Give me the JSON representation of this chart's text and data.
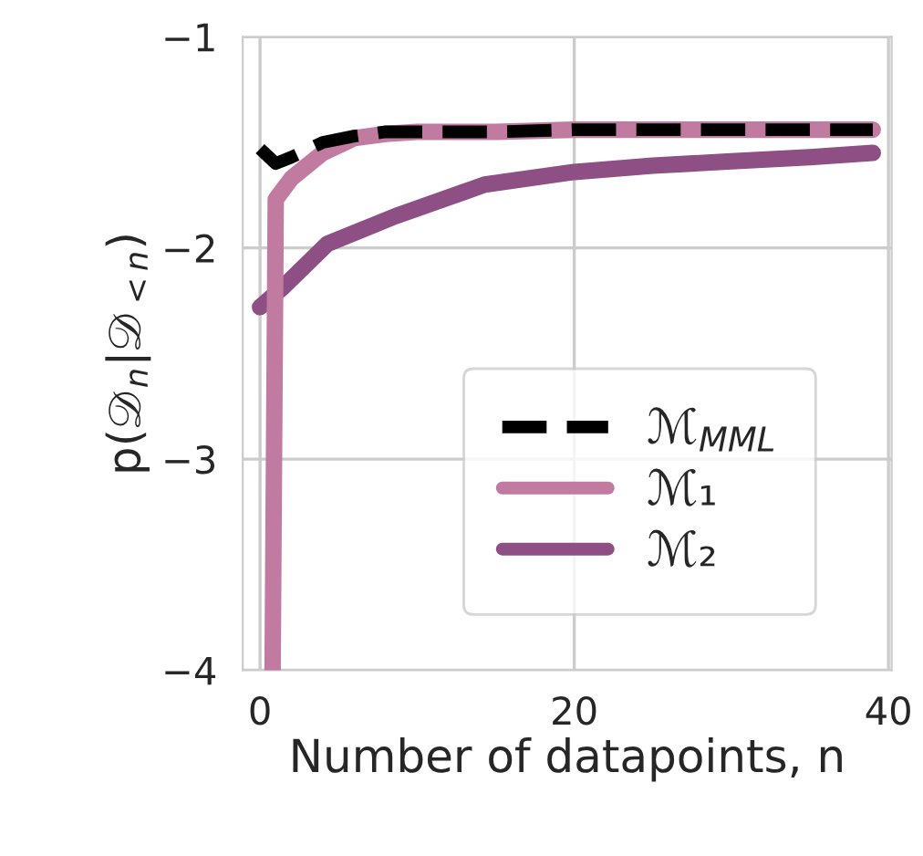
{
  "chart_data": {
    "type": "line",
    "xlabel": "Number of datapoints, n",
    "ylabel": "p(𝒟$_{n}$|𝒟$_{<n}$)",
    "xlim": [
      -1.1,
      40.2
    ],
    "ylim": [
      -4,
      -1
    ],
    "xticks": [
      0,
      20,
      40
    ],
    "yticks": [
      -4,
      -3,
      -2,
      -1
    ],
    "grid": true,
    "legend": "bottom right",
    "series": [
      {
        "name": "ℳ$_{MML}$",
        "color": "#000000",
        "line_style": "dashed",
        "x": [
          0,
          1,
          2,
          4,
          6,
          8,
          10,
          15,
          20,
          25,
          30,
          35,
          39
        ],
        "values": [
          -1.53,
          -1.6,
          -1.57,
          -1.5,
          -1.47,
          -1.45,
          -1.45,
          -1.45,
          -1.44,
          -1.44,
          -1.44,
          -1.44,
          -1.44
        ]
      },
      {
        "name": "ℳ₁",
        "color": "#c27ba0",
        "line_style": "solid",
        "x": [
          0.8,
          1,
          2,
          4,
          6,
          8,
          10,
          15,
          20,
          25,
          30,
          35,
          39
        ],
        "values": [
          -4,
          -1.77,
          -1.67,
          -1.55,
          -1.48,
          -1.46,
          -1.45,
          -1.45,
          -1.44,
          -1.44,
          -1.44,
          -1.44,
          -1.44
        ]
      },
      {
        "name": "ℳ₂",
        "color": "#8e4f85",
        "line_style": "solid",
        "x": [
          0,
          1.4,
          4.3,
          8.6,
          14.3,
          20,
          25,
          30,
          35,
          39
        ],
        "values": [
          -2.28,
          -2.19,
          -1.98,
          -1.85,
          -1.7,
          -1.64,
          -1.61,
          -1.59,
          -1.57,
          -1.55
        ]
      }
    ]
  }
}
